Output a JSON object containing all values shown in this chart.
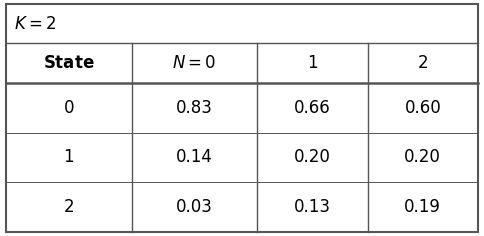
{
  "title_cell": "$K = 2$",
  "col_headers": [
    "\\textbf{State}",
    "$N = 0$",
    "1",
    "2"
  ],
  "rows": [
    [
      "0",
      "0.83",
      "0.66",
      "0.60"
    ],
    [
      "1",
      "0.14",
      "0.20",
      "0.20"
    ],
    [
      "2",
      "0.03",
      "0.13",
      "0.19"
    ]
  ],
  "border_color": "#555555",
  "font_size": 12,
  "title_font_size": 12,
  "fig_w": 4.84,
  "fig_h": 2.36,
  "dpi": 100
}
